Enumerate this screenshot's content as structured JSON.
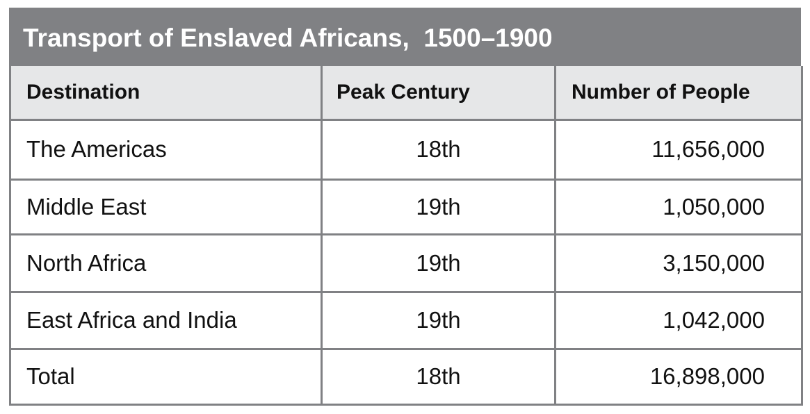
{
  "chart_data": {
    "type": "table",
    "title": "Transport of Enslaved Africans,  1500–1900",
    "columns": [
      "Destination",
      "Peak Century",
      "Number of People"
    ],
    "rows": [
      [
        "The Americas",
        "18th",
        "11,656,000"
      ],
      [
        "Middle East",
        "19th",
        "1,050,000"
      ],
      [
        "North Africa",
        "19th",
        "3,150,000"
      ],
      [
        "East Africa and India",
        "19th",
        "1,042,000"
      ],
      [
        "Total",
        "18th",
        "16,898,000"
      ]
    ]
  },
  "colors": {
    "title_bg": "#808184",
    "header_bg": "#e6e7e8",
    "border": "#808184"
  }
}
